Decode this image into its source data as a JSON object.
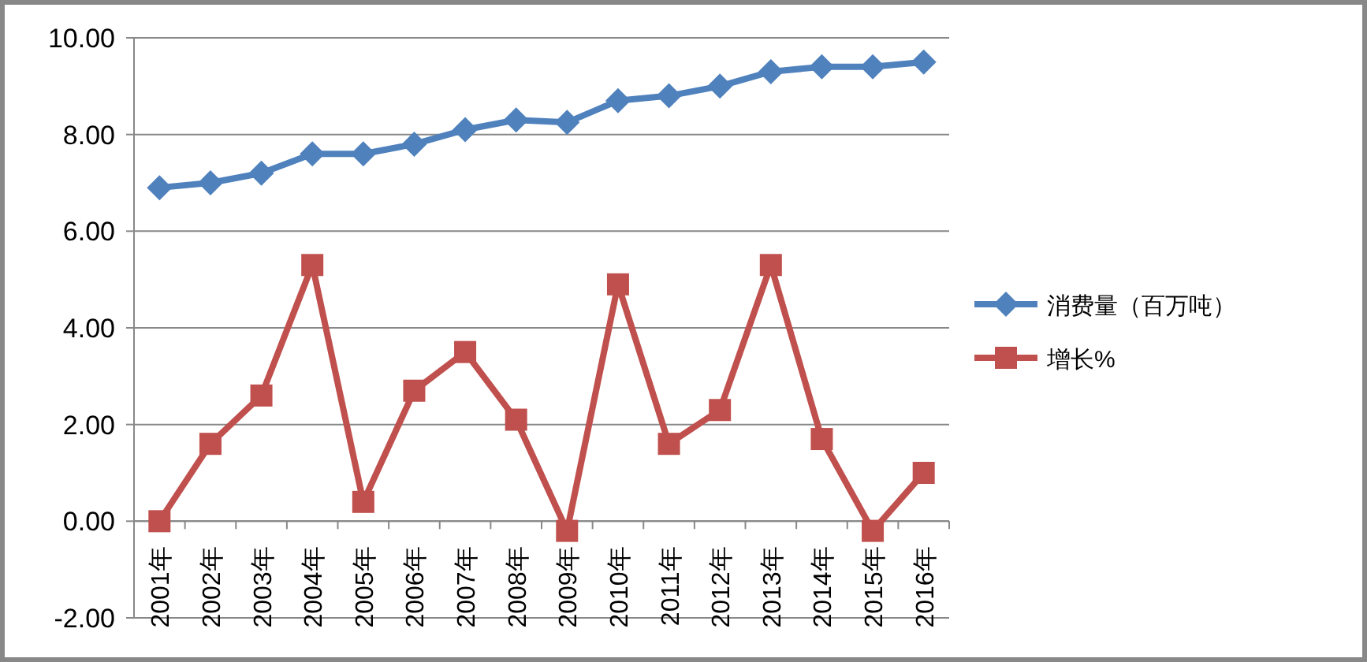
{
  "chart_data": {
    "type": "line",
    "categories": [
      "2001年",
      "2002年",
      "2003年",
      "2004年",
      "2005年",
      "2006年",
      "2007年",
      "2008年",
      "2009年",
      "2010年",
      "2011年",
      "2012年",
      "2013年",
      "2014年",
      "2015年",
      "2016年"
    ],
    "series": [
      {
        "name": "消费量（百万吨）",
        "color": "#4f81bd",
        "marker": "diamond",
        "values": [
          6.9,
          7.0,
          7.2,
          7.6,
          7.6,
          7.8,
          8.1,
          8.3,
          8.25,
          8.7,
          8.8,
          9.0,
          9.3,
          9.4,
          9.4,
          9.5
        ]
      },
      {
        "name": "增长%",
        "color": "#c0504d",
        "marker": "square",
        "values": [
          0,
          1.6,
          2.6,
          5.3,
          0.4,
          2.7,
          3.5,
          2.1,
          -0.2,
          4.9,
          1.6,
          2.3,
          5.3,
          1.7,
          -0.2,
          1.0
        ]
      }
    ],
    "ylim": [
      -2,
      10
    ],
    "yticks": [
      {
        "value": -2,
        "label": "-2.00"
      },
      {
        "value": 0,
        "label": "0.00"
      },
      {
        "value": 2,
        "label": "2.00"
      },
      {
        "value": 4,
        "label": "4.00"
      },
      {
        "value": 6,
        "label": "6.00"
      },
      {
        "value": 8,
        "label": "8.00"
      },
      {
        "value": 10,
        "label": "10.00"
      }
    ],
    "grid": "y",
    "legend": "right",
    "line_style": "solid"
  }
}
